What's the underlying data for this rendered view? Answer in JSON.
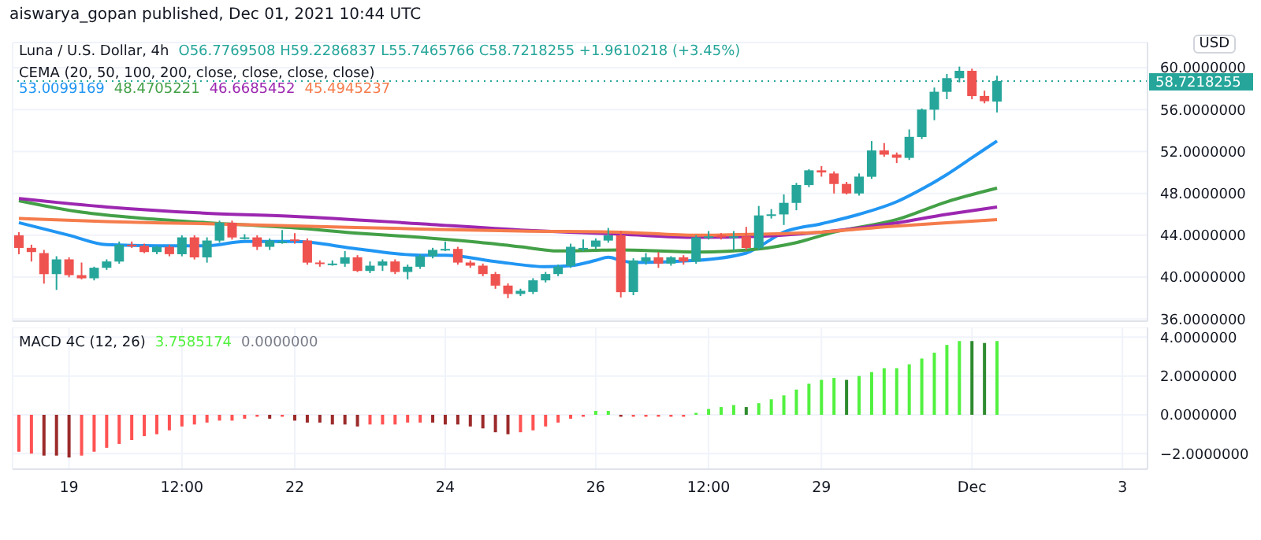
{
  "chart_data": [
    {
      "type": "candlestick",
      "title": "Luna / U.S. Dollar, 4h",
      "subtitle": "O56.7769508 H59.2286837 L55.7465766 C58.7218255 +1.9610218 (+3.45%)",
      "ylabel": "USD",
      "legend_title": "CEMA (20, 50, 100, 200, close, close, close, close)",
      "legend": "top left",
      "grid": true,
      "tick_labels": "y",
      "annotations": [
        "aiswarya_gopan published, Dec 01, 2021 10:44 UTC"
      ],
      "xlim": [
        "2021-11-18T06:00",
        "2021-12-03T08:00"
      ],
      "xticks": [
        {
          "value": "2021-11-19",
          "label": null
        },
        {
          "value": "2021-11-20T12:00",
          "label": null
        },
        {
          "value": "2021-11-22",
          "label": null
        },
        {
          "value": "2021-11-24",
          "label": null
        },
        {
          "value": "2021-11-26",
          "label": null
        },
        {
          "value": "2021-11-27T12:00",
          "label": null
        },
        {
          "value": "2021-11-29",
          "label": null
        },
        {
          "value": "2021-12-01",
          "label": null
        },
        {
          "value": "2021-12-03",
          "label": null
        }
      ],
      "ylim": [
        35.8,
        62.4
      ],
      "yticks": [
        {
          "value": 36,
          "label": "36.0000000"
        },
        {
          "value": 40,
          "label": "40.0000000"
        },
        {
          "value": 44,
          "label": "44.0000000"
        },
        {
          "value": 48,
          "label": "48.0000000"
        },
        {
          "value": 52,
          "label": "52.0000000"
        },
        {
          "value": 56,
          "label": "56.0000000"
        },
        {
          "value": 60,
          "label": "60.0000000"
        }
      ],
      "ref_lines": [
        {
          "axis": "y",
          "value": 58.7218255,
          "label": "58.7218255",
          "color": "#26a69a",
          "line_style": "dotted"
        }
      ],
      "x": [
        "2021-11-18T08:00",
        "2021-11-18T12:00",
        "2021-11-18T16:00",
        "2021-11-18T20:00",
        "2021-11-19T00:00",
        "2021-11-19T04:00",
        "2021-11-19T08:00",
        "2021-11-19T12:00",
        "2021-11-19T16:00",
        "2021-11-19T20:00",
        "2021-11-20T00:00",
        "2021-11-20T04:00",
        "2021-11-20T08:00",
        "2021-11-20T12:00",
        "2021-11-20T16:00",
        "2021-11-20T20:00",
        "2021-11-21T00:00",
        "2021-11-21T04:00",
        "2021-11-21T08:00",
        "2021-11-21T12:00",
        "2021-11-21T16:00",
        "2021-11-21T20:00",
        "2021-11-22T00:00",
        "2021-11-22T04:00",
        "2021-11-22T08:00",
        "2021-11-22T12:00",
        "2021-11-22T16:00",
        "2021-11-22T20:00",
        "2021-11-23T00:00",
        "2021-11-23T04:00",
        "2021-11-23T08:00",
        "2021-11-23T12:00",
        "2021-11-23T16:00",
        "2021-11-23T20:00",
        "2021-11-24T00:00",
        "2021-11-24T04:00",
        "2021-11-24T08:00",
        "2021-11-24T12:00",
        "2021-11-24T16:00",
        "2021-11-24T20:00",
        "2021-11-25T00:00",
        "2021-11-25T04:00",
        "2021-11-25T08:00",
        "2021-11-25T12:00",
        "2021-11-25T16:00",
        "2021-11-25T20:00",
        "2021-11-26T00:00",
        "2021-11-26T04:00",
        "2021-11-26T08:00",
        "2021-11-26T12:00",
        "2021-11-26T16:00",
        "2021-11-26T20:00",
        "2021-11-27T00:00",
        "2021-11-27T04:00",
        "2021-11-27T08:00",
        "2021-11-27T12:00",
        "2021-11-27T16:00",
        "2021-11-27T20:00",
        "2021-11-28T00:00",
        "2021-11-28T04:00",
        "2021-11-28T08:00",
        "2021-11-28T12:00",
        "2021-11-28T16:00",
        "2021-11-28T20:00",
        "2021-11-29T00:00",
        "2021-11-29T04:00",
        "2021-11-29T08:00",
        "2021-11-29T12:00",
        "2021-11-29T16:00",
        "2021-11-29T20:00",
        "2021-11-30T00:00",
        "2021-11-30T04:00",
        "2021-11-30T08:00",
        "2021-11-30T12:00",
        "2021-11-30T16:00",
        "2021-11-30T20:00",
        "2021-12-01T00:00",
        "2021-12-01T04:00",
        "2021-12-01T08:00"
      ],
      "ohlc": [
        [
          44.0,
          44.3,
          42.2,
          42.8
        ],
        [
          42.8,
          43.1,
          41.5,
          42.4
        ],
        [
          42.3,
          42.6,
          39.4,
          40.3
        ],
        [
          40.3,
          42.0,
          38.8,
          41.7
        ],
        [
          41.7,
          41.9,
          40.0,
          40.2
        ],
        [
          40.2,
          41.4,
          39.8,
          39.9
        ],
        [
          39.9,
          41.0,
          39.7,
          40.9
        ],
        [
          40.9,
          41.7,
          40.7,
          41.5
        ],
        [
          41.5,
          43.4,
          41.3,
          43.1
        ],
        [
          43.1,
          43.4,
          42.8,
          43.0
        ],
        [
          43.0,
          43.2,
          42.3,
          42.4
        ],
        [
          42.4,
          43.0,
          42.2,
          42.9
        ],
        [
          42.9,
          43.1,
          42.0,
          42.2
        ],
        [
          42.2,
          44.0,
          42.0,
          43.8
        ],
        [
          43.8,
          44.0,
          41.7,
          41.9
        ],
        [
          41.9,
          43.8,
          41.4,
          43.5
        ],
        [
          43.5,
          45.4,
          43.3,
          45.2
        ],
        [
          45.2,
          45.4,
          43.6,
          43.8
        ],
        [
          43.8,
          44.1,
          43.6,
          43.8
        ],
        [
          43.8,
          44.0,
          42.6,
          42.9
        ],
        [
          42.9,
          43.7,
          42.6,
          43.5
        ],
        [
          43.4,
          44.5,
          43.2,
          43.4
        ],
        [
          43.6,
          44.2,
          43.2,
          43.5
        ],
        [
          43.5,
          43.7,
          41.2,
          41.4
        ],
        [
          41.4,
          41.6,
          41.0,
          41.3
        ],
        [
          41.3,
          41.6,
          41.1,
          41.3
        ],
        [
          41.3,
          42.5,
          41.0,
          41.9
        ],
        [
          41.9,
          42.1,
          40.5,
          40.6
        ],
        [
          40.6,
          41.5,
          40.4,
          41.1
        ],
        [
          41.1,
          41.7,
          40.6,
          41.5
        ],
        [
          41.5,
          41.7,
          40.3,
          40.5
        ],
        [
          40.5,
          41.2,
          39.8,
          41.0
        ],
        [
          41.0,
          42.2,
          40.8,
          42.0
        ],
        [
          42.0,
          42.8,
          41.8,
          42.6
        ],
        [
          42.7,
          43.4,
          42.5,
          42.7
        ],
        [
          42.7,
          42.9,
          41.2,
          41.4
        ],
        [
          41.4,
          41.6,
          40.9,
          41.1
        ],
        [
          41.1,
          41.3,
          40.1,
          40.3
        ],
        [
          40.3,
          40.5,
          38.9,
          39.2
        ],
        [
          39.2,
          39.4,
          38.0,
          38.4
        ],
        [
          38.4,
          38.9,
          38.2,
          38.7
        ],
        [
          38.6,
          39.9,
          38.4,
          39.7
        ],
        [
          39.7,
          40.5,
          39.5,
          40.3
        ],
        [
          40.3,
          41.2,
          40.1,
          41.0
        ],
        [
          41.1,
          43.2,
          40.9,
          42.9
        ],
        [
          42.8,
          43.6,
          42.5,
          42.8
        ],
        [
          42.9,
          43.7,
          42.7,
          43.5
        ],
        [
          43.5,
          44.7,
          43.3,
          44.0
        ],
        [
          44.0,
          44.4,
          38.1,
          38.6
        ],
        [
          38.6,
          41.8,
          38.3,
          41.6
        ],
        [
          41.5,
          42.3,
          41.2,
          41.9
        ],
        [
          41.9,
          42.4,
          40.9,
          41.3
        ],
        [
          41.3,
          42.0,
          41.1,
          41.9
        ],
        [
          41.9,
          42.1,
          41.2,
          41.5
        ],
        [
          41.5,
          44.0,
          41.3,
          43.8
        ],
        [
          43.9,
          44.4,
          43.6,
          43.9
        ],
        [
          44.0,
          44.2,
          43.6,
          43.8
        ],
        [
          43.9,
          44.4,
          42.6,
          43.9
        ],
        [
          43.9,
          44.8,
          42.6,
          42.8
        ],
        [
          42.8,
          46.8,
          42.6,
          45.9
        ],
        [
          45.9,
          46.5,
          45.6,
          46.0
        ],
        [
          46.0,
          47.9,
          45.0,
          47.1
        ],
        [
          47.1,
          49.0,
          46.4,
          48.8
        ],
        [
          48.8,
          50.3,
          48.6,
          50.2
        ],
        [
          50.2,
          50.6,
          49.6,
          50.0
        ],
        [
          49.9,
          50.1,
          48.0,
          48.9
        ],
        [
          48.9,
          49.1,
          47.9,
          48.0
        ],
        [
          48.0,
          49.9,
          47.8,
          49.6
        ],
        [
          49.6,
          53.0,
          49.4,
          52.1
        ],
        [
          52.1,
          52.8,
          51.5,
          51.7
        ],
        [
          51.7,
          51.9,
          50.9,
          51.4
        ],
        [
          51.4,
          54.1,
          51.2,
          53.4
        ],
        [
          53.4,
          56.1,
          53.2,
          56.0
        ],
        [
          56.0,
          58.1,
          55.0,
          57.7
        ],
        [
          57.7,
          59.4,
          57.0,
          59.0
        ],
        [
          59.0,
          60.1,
          58.6,
          59.7
        ],
        [
          59.7,
          59.9,
          57.0,
          57.3
        ],
        [
          57.3,
          57.8,
          56.6,
          56.8
        ],
        [
          56.7769508,
          59.2286837,
          55.7465766,
          58.7218255
        ]
      ],
      "colors": [
        "#ef5350",
        "#ef5350",
        "#ef5350",
        "#26a69a",
        "#ef5350",
        "#ef5350",
        "#26a69a",
        "#26a69a",
        "#26a69a",
        "#ef5350",
        "#ef5350",
        "#26a69a",
        "#ef5350",
        "#26a69a",
        "#ef5350",
        "#26a69a",
        "#26a69a",
        "#ef5350",
        "#26a69a",
        "#ef5350",
        "#26a69a",
        "#26a69a",
        "#ef5350",
        "#ef5350",
        "#ef5350",
        "#26a69a",
        "#26a69a",
        "#ef5350",
        "#26a69a",
        "#26a69a",
        "#ef5350",
        "#26a69a",
        "#26a69a",
        "#26a69a",
        "#26a69a",
        "#ef5350",
        "#ef5350",
        "#ef5350",
        "#ef5350",
        "#ef5350",
        "#26a69a",
        "#26a69a",
        "#26a69a",
        "#26a69a",
        "#26a69a",
        "#26a69a",
        "#26a69a",
        "#26a69a",
        "#ef5350",
        "#26a69a",
        "#26a69a",
        "#ef5350",
        "#26a69a",
        "#ef5350",
        "#26a69a",
        "#26a69a",
        "#ef5350",
        "#26a69a",
        "#ef5350",
        "#26a69a",
        "#26a69a",
        "#26a69a",
        "#26a69a",
        "#26a69a",
        "#ef5350",
        "#ef5350",
        "#ef5350",
        "#26a69a",
        "#26a69a",
        "#ef5350",
        "#ef5350",
        "#26a69a",
        "#26a69a",
        "#26a69a",
        "#26a69a",
        "#26a69a",
        "#ef5350",
        "#ef5350",
        "#26a69a"
      ],
      "series": [
        {
          "type": "line",
          "name": "53.0099169",
          "color": "#2196f3",
          "x": [
            "2021-11-18T08:00",
            "2021-11-19T00:00",
            "2021-11-19T12:00",
            "2021-11-20T04:00",
            "2021-11-20T20:00",
            "2021-11-21T08:00",
            "2021-11-22T00:00",
            "2021-11-22T20:00",
            "2021-11-23T16:00",
            "2021-11-24T00:00",
            "2021-11-24T16:00",
            "2021-11-25T08:00",
            "2021-11-25T16:00",
            "2021-11-26T00:00",
            "2021-11-26T04:00",
            "2021-11-26T08:00",
            "2021-11-26T12:00",
            "2021-11-27T08:00",
            "2021-11-28T00:00",
            "2021-11-28T04:00",
            "2021-11-28T12:00",
            "2021-11-29T00:00",
            "2021-11-29T12:00",
            "2021-11-30T00:00",
            "2021-11-30T08:00",
            "2021-11-30T16:00",
            "2021-12-01T00:00",
            "2021-12-01T08:00"
          ],
          "values": [
            45.2,
            44.0,
            43.1,
            43.0,
            43.0,
            43.4,
            43.4,
            42.7,
            42.1,
            42.1,
            41.5,
            41.0,
            41.1,
            41.6,
            41.9,
            41.6,
            41.4,
            41.6,
            42.3,
            42.9,
            44.3,
            45.1,
            46.0,
            47.2,
            48.4,
            49.8,
            51.4,
            53.0
          ]
        },
        {
          "type": "line",
          "name": "48.4705221",
          "color": "#43a047",
          "x": [
            "2021-11-18T08:00",
            "2021-11-19T04:00",
            "2021-11-20T00:00",
            "2021-11-20T20:00",
            "2021-11-22T00:00",
            "2021-11-22T20:00",
            "2021-11-23T16:00",
            "2021-11-24T08:00",
            "2021-11-25T00:00",
            "2021-11-25T12:00",
            "2021-11-26T08:00",
            "2021-11-27T08:00",
            "2021-11-28T04:00",
            "2021-11-28T16:00",
            "2021-11-29T04:00",
            "2021-11-30T00:00",
            "2021-11-30T16:00",
            "2021-12-01T08:00"
          ],
          "values": [
            47.3,
            46.2,
            45.6,
            45.2,
            44.7,
            44.2,
            43.8,
            43.4,
            42.9,
            42.5,
            42.6,
            42.4,
            42.7,
            43.3,
            44.3,
            45.5,
            47.2,
            48.5
          ]
        },
        {
          "type": "line",
          "name": "46.6685452",
          "color": "#9c27b0",
          "x": [
            "2021-11-18T08:00",
            "2021-11-19T12:00",
            "2021-11-20T20:00",
            "2021-11-22T00:00",
            "2021-11-23T16:00",
            "2021-11-25T00:00",
            "2021-11-26T00:00",
            "2021-11-26T08:00",
            "2021-11-27T08:00",
            "2021-11-28T04:00",
            "2021-11-29T00:00",
            "2021-11-29T20:00",
            "2021-11-30T16:00",
            "2021-12-01T08:00"
          ],
          "values": [
            47.5,
            46.7,
            46.1,
            45.8,
            45.1,
            44.5,
            44.2,
            44.1,
            43.8,
            43.9,
            44.3,
            45.0,
            46.0,
            46.7
          ]
        },
        {
          "type": "line",
          "name": "45.4945237",
          "color": "#f57c4c",
          "x": [
            "2021-11-18T08:00",
            "2021-11-19T12:00",
            "2021-11-20T20:00",
            "2021-11-22T00:00",
            "2021-11-23T16:00",
            "2021-11-25T00:00",
            "2021-11-26T08:00",
            "2021-11-27T08:00",
            "2021-11-28T04:00",
            "2021-11-29T00:00",
            "2021-11-29T20:00",
            "2021-11-30T16:00",
            "2021-12-01T08:00"
          ],
          "values": [
            45.6,
            45.3,
            45.1,
            44.9,
            44.6,
            44.4,
            44.3,
            44.0,
            44.1,
            44.3,
            44.8,
            45.2,
            45.5
          ]
        }
      ]
    },
    {
      "type": "bar",
      "legend_title": "MACD 4C (12, 26)",
      "legend": "top left",
      "grid": true,
      "annotations": [
        "0.0000000"
      ],
      "xlim": [
        "2021-11-18T06:00",
        "2021-12-03T08:00"
      ],
      "xticks": [
        {
          "value": "2021-11-19",
          "label": "19"
        },
        {
          "value": "2021-11-20T12:00",
          "label": "12:00"
        },
        {
          "value": "2021-11-22",
          "label": "22"
        },
        {
          "value": "2021-11-24",
          "label": "24"
        },
        {
          "value": "2021-11-26",
          "label": "26"
        },
        {
          "value": "2021-11-27T12:00",
          "label": "12:00"
        },
        {
          "value": "2021-11-29",
          "label": "29"
        },
        {
          "value": "2021-12-01",
          "label": "Dec"
        },
        {
          "value": "2021-12-03",
          "label": "3"
        }
      ],
      "ylim": [
        -2.8,
        4.5
      ],
      "yticks": [
        {
          "value": -2,
          "label": "−2.0000000"
        },
        {
          "value": 0,
          "label": "0.0000000"
        },
        {
          "value": 2,
          "label": "2.0000000"
        },
        {
          "value": 4,
          "label": "4.0000000"
        }
      ],
      "x": [
        "2021-11-18T08:00",
        "2021-11-18T12:00",
        "2021-11-18T16:00",
        "2021-11-18T20:00",
        "2021-11-19T00:00",
        "2021-11-19T04:00",
        "2021-11-19T08:00",
        "2021-11-19T12:00",
        "2021-11-19T16:00",
        "2021-11-19T20:00",
        "2021-11-20T00:00",
        "2021-11-20T04:00",
        "2021-11-20T08:00",
        "2021-11-20T12:00",
        "2021-11-20T16:00",
        "2021-11-20T20:00",
        "2021-11-21T00:00",
        "2021-11-21T04:00",
        "2021-11-21T08:00",
        "2021-11-21T12:00",
        "2021-11-21T16:00",
        "2021-11-21T20:00",
        "2021-11-22T00:00",
        "2021-11-22T04:00",
        "2021-11-22T08:00",
        "2021-11-22T12:00",
        "2021-11-22T16:00",
        "2021-11-22T20:00",
        "2021-11-23T00:00",
        "2021-11-23T04:00",
        "2021-11-23T08:00",
        "2021-11-23T12:00",
        "2021-11-23T16:00",
        "2021-11-23T20:00",
        "2021-11-24T00:00",
        "2021-11-24T04:00",
        "2021-11-24T08:00",
        "2021-11-24T12:00",
        "2021-11-24T16:00",
        "2021-11-24T20:00",
        "2021-11-25T00:00",
        "2021-11-25T04:00",
        "2021-11-25T08:00",
        "2021-11-25T12:00",
        "2021-11-25T16:00",
        "2021-11-25T20:00",
        "2021-11-26T00:00",
        "2021-11-26T04:00",
        "2021-11-26T08:00",
        "2021-11-26T12:00",
        "2021-11-26T16:00",
        "2021-11-26T20:00",
        "2021-11-27T00:00",
        "2021-11-27T04:00",
        "2021-11-27T08:00",
        "2021-11-27T12:00",
        "2021-11-27T16:00",
        "2021-11-27T20:00",
        "2021-11-28T00:00",
        "2021-11-28T04:00",
        "2021-11-28T08:00",
        "2021-11-28T12:00",
        "2021-11-28T16:00",
        "2021-11-28T20:00",
        "2021-11-29T00:00",
        "2021-11-29T04:00",
        "2021-11-29T08:00",
        "2021-11-29T12:00",
        "2021-11-29T16:00",
        "2021-11-29T20:00",
        "2021-11-30T00:00",
        "2021-11-30T04:00",
        "2021-11-30T08:00",
        "2021-11-30T12:00",
        "2021-11-30T16:00",
        "2021-11-30T20:00",
        "2021-12-01T00:00",
        "2021-12-01T04:00",
        "2021-12-01T08:00"
      ],
      "series": [
        {
          "name": "3.7585174",
          "color": "#52f13f",
          "values": [
            -1.9,
            -2.0,
            -2.1,
            -2.1,
            -2.2,
            -2.1,
            -1.9,
            -1.7,
            -1.5,
            -1.3,
            -1.1,
            -1.0,
            -0.8,
            -0.6,
            -0.5,
            -0.4,
            -0.3,
            -0.3,
            -0.2,
            -0.1,
            -0.2,
            -0.1,
            -0.3,
            -0.4,
            -0.4,
            -0.5,
            -0.5,
            -0.6,
            -0.5,
            -0.5,
            -0.5,
            -0.4,
            -0.4,
            -0.4,
            -0.5,
            -0.5,
            -0.6,
            -0.7,
            -0.9,
            -1.0,
            -0.9,
            -0.8,
            -0.6,
            -0.4,
            -0.2,
            -0.1,
            0.2,
            0.2,
            -0.1,
            -0.1,
            -0.1,
            -0.1,
            -0.1,
            -0.1,
            0.1,
            0.3,
            0.4,
            0.5,
            0.4,
            0.6,
            0.8,
            1.0,
            1.3,
            1.6,
            1.8,
            1.9,
            1.8,
            2.0,
            2.2,
            2.4,
            2.4,
            2.6,
            2.9,
            3.2,
            3.6,
            3.8,
            3.8,
            3.7,
            3.8
          ],
          "colors": [
            "#ff5252",
            "#ff5252",
            "#9c2a2a",
            "#9c2a2a",
            "#9c2a2a",
            "#ff5252",
            "#ff5252",
            "#ff5252",
            "#ff5252",
            "#ff5252",
            "#ff5252",
            "#ff5252",
            "#ff5252",
            "#ff5252",
            "#ff5252",
            "#ff5252",
            "#ff5252",
            "#ff5252",
            "#ff5252",
            "#ff5252",
            "#9c2a2a",
            "#ff5252",
            "#9c2a2a",
            "#9c2a2a",
            "#9c2a2a",
            "#9c2a2a",
            "#9c2a2a",
            "#9c2a2a",
            "#ff5252",
            "#ff5252",
            "#ff5252",
            "#ff5252",
            "#ff5252",
            "#9c2a2a",
            "#9c2a2a",
            "#9c2a2a",
            "#9c2a2a",
            "#9c2a2a",
            "#9c2a2a",
            "#9c2a2a",
            "#ff5252",
            "#ff5252",
            "#ff5252",
            "#ff5252",
            "#ff5252",
            "#ff5252",
            "#52f13f",
            "#52f13f",
            "#9c2a2a",
            "#ff5252",
            "#ff5252",
            "#ff5252",
            "#ff5252",
            "#ff5252",
            "#52f13f",
            "#52f13f",
            "#52f13f",
            "#52f13f",
            "#2e8b2e",
            "#52f13f",
            "#52f13f",
            "#52f13f",
            "#52f13f",
            "#52f13f",
            "#52f13f",
            "#52f13f",
            "#2e8b2e",
            "#52f13f",
            "#52f13f",
            "#52f13f",
            "#52f13f",
            "#52f13f",
            "#52f13f",
            "#52f13f",
            "#52f13f",
            "#52f13f",
            "#2e8b2e",
            "#2e8b2e",
            "#52f13f"
          ]
        }
      ]
    }
  ]
}
